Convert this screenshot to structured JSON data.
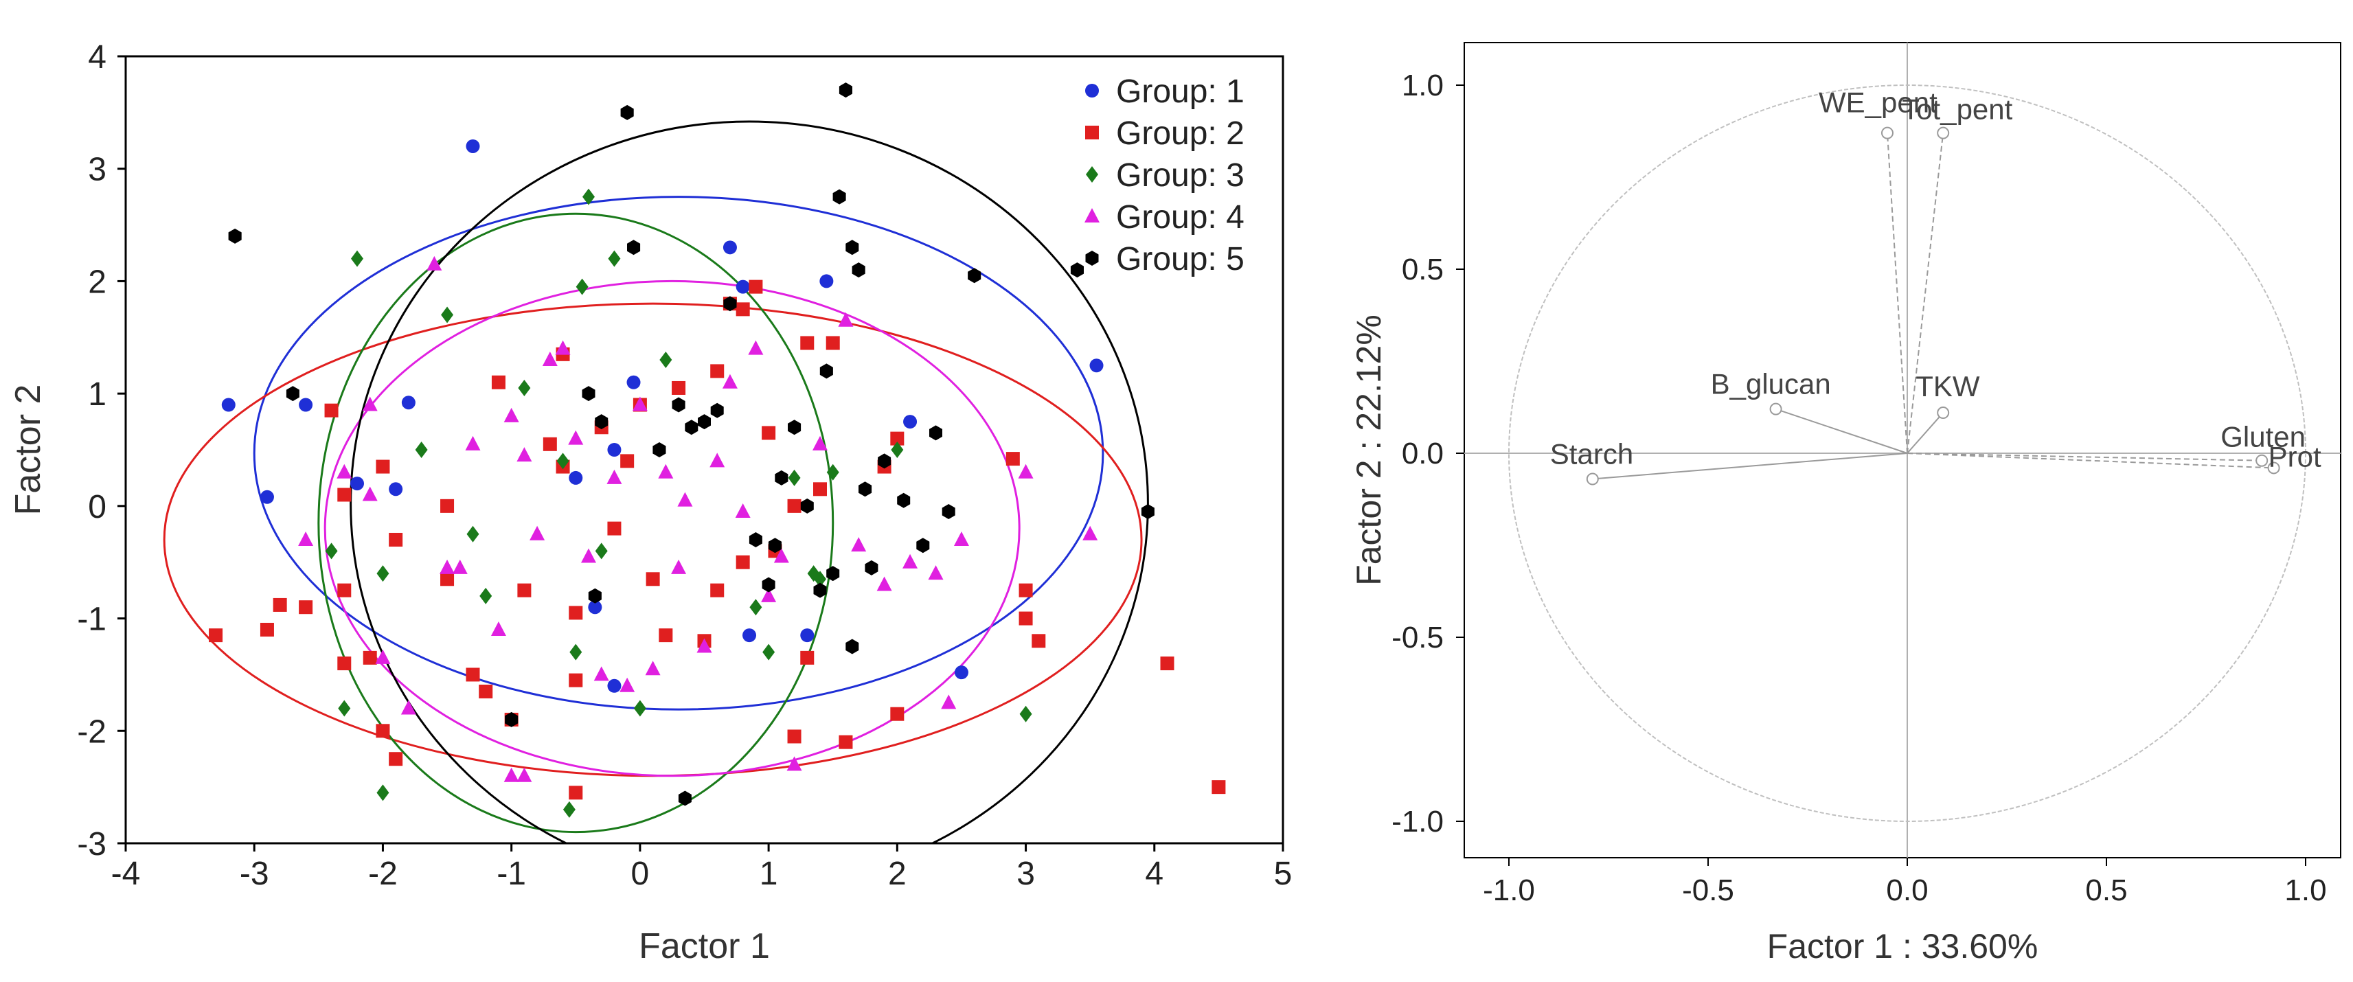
{
  "colors": {
    "group1": "#1f2fd6",
    "group2": "#e01f1f",
    "group3": "#1a7a1a",
    "group4": "#e020e0",
    "group5": "#000000",
    "loading_gray": "#9a9a9a"
  },
  "chart_data": [
    {
      "type": "scatter",
      "title": "",
      "xlabel": "Factor 1",
      "ylabel": "Factor 2",
      "xlim": [
        -4,
        5
      ],
      "ylim": [
        -3,
        4
      ],
      "xticks": [
        -4,
        -3,
        -2,
        -1,
        0,
        1,
        2,
        3,
        4,
        5
      ],
      "yticks": [
        -3,
        -2,
        -1,
        0,
        1,
        2,
        3,
        4
      ],
      "xtick_labels": [
        "-4",
        "-3",
        "-2",
        "-1",
        "0",
        "1",
        "2",
        "3",
        "4",
        "5"
      ],
      "ytick_labels": [
        "-3",
        "-2",
        "-1",
        "0",
        "1",
        "2",
        "3",
        "4"
      ],
      "legend_position": "top-right",
      "series": [
        {
          "name": "Group: 1",
          "color_key": "group1",
          "marker": "circle",
          "ellipse": {
            "cx": 0.3,
            "cy": 0.47,
            "rx": 3.3,
            "ry": 2.28
          },
          "points": [
            [
              -1.3,
              3.2
            ],
            [
              -3.2,
              0.9
            ],
            [
              -2.9,
              0.08
            ],
            [
              -2.6,
              0.9
            ],
            [
              -2.2,
              0.2
            ],
            [
              -1.8,
              0.92
            ],
            [
              -1.9,
              0.15
            ],
            [
              -0.5,
              0.25
            ],
            [
              -0.2,
              0.5
            ],
            [
              -0.35,
              -0.9
            ],
            [
              -0.2,
              -1.6
            ],
            [
              -0.05,
              1.1
            ],
            [
              0.7,
              2.3
            ],
            [
              0.8,
              1.95
            ],
            [
              0.85,
              -1.15
            ],
            [
              1.3,
              -1.15
            ],
            [
              1.45,
              2.0
            ],
            [
              2.1,
              0.75
            ],
            [
              2.5,
              -1.48
            ],
            [
              3.55,
              1.25
            ]
          ]
        },
        {
          "name": "Group: 2",
          "color_key": "group2",
          "marker": "square",
          "ellipse": {
            "cx": 0.1,
            "cy": -0.3,
            "rx": 3.8,
            "ry": 2.1
          },
          "points": [
            [
              -3.3,
              -1.15
            ],
            [
              -2.9,
              -1.1
            ],
            [
              -2.8,
              -0.88
            ],
            [
              -2.6,
              -0.9
            ],
            [
              -2.4,
              0.85
            ],
            [
              -2.3,
              0.1
            ],
            [
              -2.3,
              -0.75
            ],
            [
              -2.3,
              -1.4
            ],
            [
              -2.1,
              -1.35
            ],
            [
              -2.0,
              0.35
            ],
            [
              -2.0,
              -2.0
            ],
            [
              -1.9,
              -0.3
            ],
            [
              -1.9,
              -2.25
            ],
            [
              -1.5,
              0.0
            ],
            [
              -1.5,
              -0.65
            ],
            [
              -1.3,
              -1.5
            ],
            [
              -1.2,
              -1.65
            ],
            [
              -1.1,
              1.1
            ],
            [
              -1.0,
              -1.9
            ],
            [
              -0.9,
              -0.75
            ],
            [
              -0.7,
              0.55
            ],
            [
              -0.6,
              1.35
            ],
            [
              -0.6,
              0.35
            ],
            [
              -0.5,
              -0.95
            ],
            [
              -0.5,
              -1.55
            ],
            [
              -0.5,
              -2.55
            ],
            [
              -0.3,
              0.7
            ],
            [
              -0.2,
              -0.2
            ],
            [
              -0.1,
              0.4
            ],
            [
              0.0,
              0.9
            ],
            [
              0.1,
              -0.65
            ],
            [
              0.2,
              -1.15
            ],
            [
              0.3,
              1.05
            ],
            [
              0.5,
              -1.2
            ],
            [
              0.6,
              -0.75
            ],
            [
              0.6,
              1.2
            ],
            [
              0.7,
              1.8
            ],
            [
              0.8,
              -0.5
            ],
            [
              0.8,
              1.75
            ],
            [
              0.9,
              1.95
            ],
            [
              1.0,
              0.65
            ],
            [
              1.05,
              -0.4
            ],
            [
              1.2,
              -2.05
            ],
            [
              1.2,
              0.0
            ],
            [
              1.3,
              1.45
            ],
            [
              1.3,
              -1.35
            ],
            [
              1.4,
              0.15
            ],
            [
              1.5,
              1.45
            ],
            [
              1.6,
              -2.1
            ],
            [
              1.9,
              0.35
            ],
            [
              2.0,
              0.6
            ],
            [
              2.0,
              -1.85
            ],
            [
              2.9,
              0.42
            ],
            [
              3.0,
              -1.0
            ],
            [
              3.1,
              -1.2
            ],
            [
              3.0,
              -0.75
            ],
            [
              4.1,
              -1.4
            ],
            [
              4.5,
              -2.5
            ]
          ]
        },
        {
          "name": "Group: 3",
          "color_key": "group3",
          "marker": "diamond",
          "ellipse": {
            "cx": -0.5,
            "cy": -0.15,
            "rx": 2.0,
            "ry": 2.75
          },
          "points": [
            [
              -2.4,
              -0.4
            ],
            [
              -2.3,
              -1.8
            ],
            [
              -2.2,
              2.2
            ],
            [
              -2.0,
              -0.6
            ],
            [
              -2.0,
              -2.55
            ],
            [
              -1.7,
              0.5
            ],
            [
              -1.5,
              1.7
            ],
            [
              -1.3,
              -0.25
            ],
            [
              -1.2,
              -0.8
            ],
            [
              -0.9,
              1.05
            ],
            [
              -0.6,
              0.4
            ],
            [
              -0.5,
              -1.3
            ],
            [
              -0.45,
              1.95
            ],
            [
              -0.3,
              -0.4
            ],
            [
              -0.4,
              2.75
            ],
            [
              -0.2,
              2.2
            ],
            [
              0.0,
              -1.8
            ],
            [
              0.2,
              1.3
            ],
            [
              0.9,
              -0.9
            ],
            [
              1.0,
              -1.3
            ],
            [
              1.2,
              0.25
            ],
            [
              1.35,
              -0.6
            ],
            [
              1.4,
              -0.65
            ],
            [
              1.5,
              0.3
            ],
            [
              2.0,
              0.5
            ],
            [
              3.0,
              -1.85
            ],
            [
              -0.55,
              -2.7
            ]
          ]
        },
        {
          "name": "Group: 4",
          "color_key": "group4",
          "marker": "triangle",
          "ellipse": {
            "cx": 0.25,
            "cy": -0.2,
            "rx": 2.7,
            "ry": 2.2
          },
          "points": [
            [
              -2.6,
              -0.3
            ],
            [
              -2.3,
              0.3
            ],
            [
              -2.1,
              0.1
            ],
            [
              -2.1,
              0.9
            ],
            [
              -2.0,
              -1.35
            ],
            [
              -1.8,
              -1.8
            ],
            [
              -1.6,
              2.15
            ],
            [
              -1.5,
              -0.55
            ],
            [
              -1.4,
              -0.55
            ],
            [
              -1.3,
              0.55
            ],
            [
              -1.1,
              -1.1
            ],
            [
              -1.0,
              0.8
            ],
            [
              -1.0,
              -2.4
            ],
            [
              -0.9,
              0.45
            ],
            [
              -0.8,
              -0.25
            ],
            [
              -0.7,
              1.3
            ],
            [
              -0.6,
              1.4
            ],
            [
              -0.5,
              0.6
            ],
            [
              -0.4,
              -0.45
            ],
            [
              -0.3,
              -1.5
            ],
            [
              -0.2,
              0.25
            ],
            [
              -0.1,
              -1.6
            ],
            [
              0.0,
              0.9
            ],
            [
              0.1,
              -1.45
            ],
            [
              0.2,
              0.3
            ],
            [
              0.3,
              -0.55
            ],
            [
              0.35,
              0.05
            ],
            [
              0.5,
              -1.25
            ],
            [
              0.6,
              0.4
            ],
            [
              0.7,
              1.1
            ],
            [
              0.8,
              -0.05
            ],
            [
              0.9,
              1.4
            ],
            [
              1.0,
              -0.8
            ],
            [
              1.1,
              -0.45
            ],
            [
              1.2,
              -2.3
            ],
            [
              1.4,
              0.55
            ],
            [
              1.6,
              1.65
            ],
            [
              1.7,
              -0.35
            ],
            [
              1.9,
              -0.7
            ],
            [
              2.1,
              -0.5
            ],
            [
              2.3,
              -0.6
            ],
            [
              2.4,
              -1.75
            ],
            [
              2.5,
              -0.3
            ],
            [
              3.0,
              0.3
            ],
            [
              3.5,
              -0.25
            ],
            [
              -0.9,
              -2.4
            ]
          ]
        },
        {
          "name": "Group: 5",
          "color_key": "group5",
          "marker": "hexagon",
          "ellipse": {
            "cx": 0.85,
            "cy": 0.02,
            "rx": 3.1,
            "ry": 3.4
          },
          "points": [
            [
              -3.15,
              2.4
            ],
            [
              -2.7,
              1.0
            ],
            [
              -1.0,
              -1.9
            ],
            [
              -0.4,
              1.0
            ],
            [
              -0.3,
              0.75
            ],
            [
              -0.35,
              -0.8
            ],
            [
              -0.1,
              3.5
            ],
            [
              -0.05,
              2.3
            ],
            [
              0.15,
              0.5
            ],
            [
              0.3,
              0.9
            ],
            [
              0.4,
              0.7
            ],
            [
              0.5,
              0.75
            ],
            [
              0.6,
              0.85
            ],
            [
              0.7,
              1.8
            ],
            [
              0.9,
              -0.3
            ],
            [
              1.0,
              -0.7
            ],
            [
              1.05,
              -0.35
            ],
            [
              1.1,
              0.25
            ],
            [
              1.2,
              0.7
            ],
            [
              1.3,
              0.0
            ],
            [
              1.45,
              1.2
            ],
            [
              1.5,
              -0.6
            ],
            [
              1.55,
              2.75
            ],
            [
              1.6,
              3.7
            ],
            [
              1.65,
              2.3
            ],
            [
              1.7,
              2.1
            ],
            [
              1.75,
              0.15
            ],
            [
              1.8,
              -0.55
            ],
            [
              1.9,
              0.4
            ],
            [
              2.05,
              0.05
            ],
            [
              2.2,
              -0.35
            ],
            [
              2.3,
              0.65
            ],
            [
              2.4,
              -0.05
            ],
            [
              2.6,
              2.05
            ],
            [
              3.4,
              2.1
            ],
            [
              3.95,
              -0.05
            ],
            [
              0.35,
              -2.6
            ],
            [
              1.65,
              -1.25
            ],
            [
              1.4,
              -0.75
            ]
          ]
        }
      ]
    },
    {
      "type": "loadings",
      "title": "",
      "xlabel": "Factor 1 : 33.60%",
      "ylabel": "Factor 2 : 22.12%",
      "xlim": [
        -1.0,
        1.0
      ],
      "ylim": [
        -1.0,
        1.0
      ],
      "xticks": [
        -1.0,
        -0.5,
        0.0,
        0.5,
        1.0
      ],
      "yticks": [
        -1.0,
        -0.5,
        0.0,
        0.5,
        1.0
      ],
      "xtick_labels": [
        "-1.0",
        "-0.5",
        "0.0",
        "0.5",
        "1.0"
      ],
      "ytick_labels": [
        "-1.0",
        "-0.5",
        "0.0",
        "0.5",
        "1.0"
      ],
      "unit_circle": true,
      "variables": [
        {
          "label": "WE_pent",
          "x": -0.05,
          "y": 0.87,
          "style": "dashed"
        },
        {
          "label": "Tot_pent",
          "x": 0.09,
          "y": 0.87,
          "style": "dashed"
        },
        {
          "label": "TKW",
          "x": 0.09,
          "y": 0.11,
          "style": "solid"
        },
        {
          "label": "B_glucan",
          "x": -0.33,
          "y": 0.12,
          "style": "solid"
        },
        {
          "label": "Starch",
          "x": -0.79,
          "y": -0.07,
          "style": "solid"
        },
        {
          "label": "Gluten",
          "x": 0.89,
          "y": -0.02,
          "style": "dashed"
        },
        {
          "label": "Prot",
          "x": 0.92,
          "y": -0.04,
          "style": "dashed"
        }
      ]
    }
  ]
}
